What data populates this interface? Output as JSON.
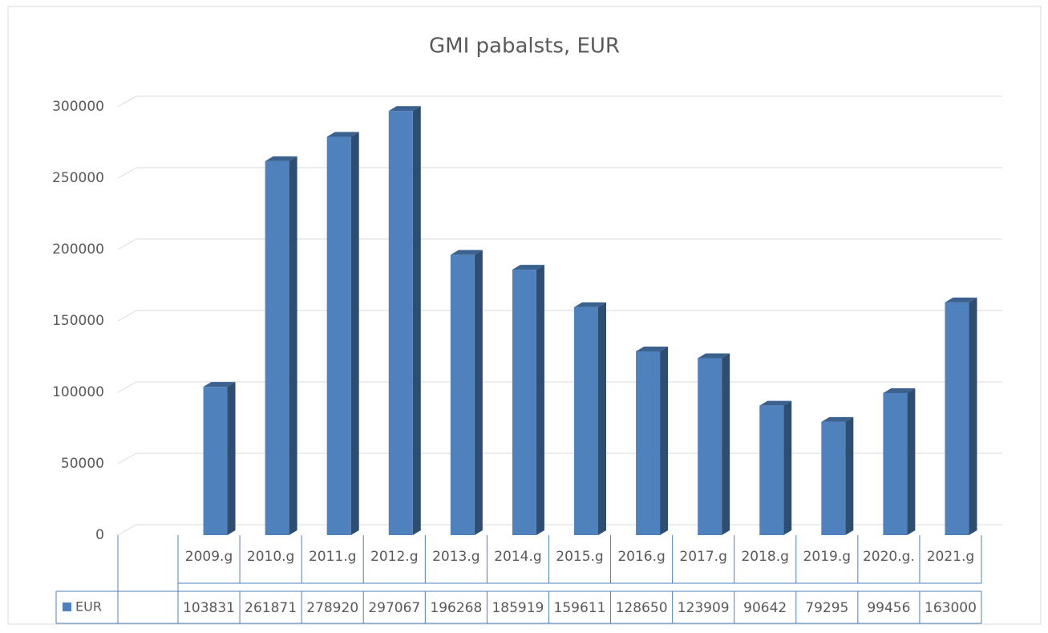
{
  "chart_data": {
    "type": "bar3d",
    "title": "GMI pabalsts, EUR",
    "categories": [
      "2009.g",
      "2010.g",
      "2011.g",
      "2012.g",
      "2013.g",
      "2014.g",
      "2015.g",
      "2016.g",
      "2017.g",
      "2018.g",
      "2019.g",
      "2020.g.",
      "2021.g"
    ],
    "series": [
      {
        "name": "EUR",
        "color": "#4f81bd",
        "values": [
          103831,
          261871,
          278920,
          297067,
          196268,
          185919,
          159611,
          128650,
          123909,
          90642,
          79295,
          99456,
          163000
        ]
      }
    ],
    "ylim": [
      0,
      300000
    ],
    "yticks": [
      0,
      50000,
      100000,
      150000,
      200000,
      250000,
      300000
    ],
    "grid": true,
    "data_table": true
  }
}
